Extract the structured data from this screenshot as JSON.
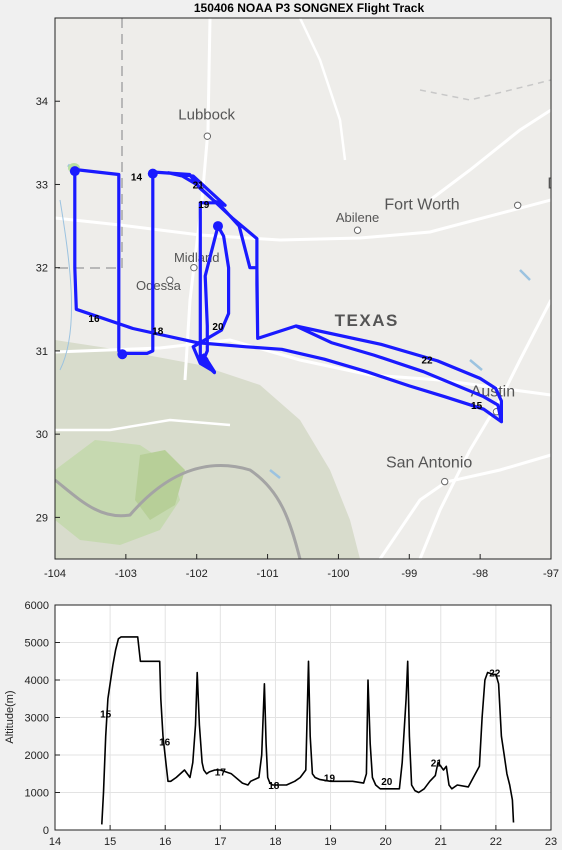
{
  "chart_data": [
    {
      "type": "line",
      "title": "150406 NOAA P3 SONGNEX Flight Track",
      "xlim": [
        -104,
        -97
      ],
      "ylim": [
        28.5,
        35
      ],
      "xticks": [
        -104,
        -103,
        -102,
        -101,
        -100,
        -99,
        -98,
        -97
      ],
      "yticks": [
        29,
        30,
        31,
        32,
        33,
        34
      ],
      "xtick_labels": [
        "-104",
        "-103",
        "-102",
        "-101",
        "-100",
        "-99",
        "-98",
        "-97"
      ],
      "ytick_labels": [
        "29",
        "30",
        "31",
        "32",
        "33",
        "34"
      ],
      "background": "map",
      "line_color": "#1a1aff",
      "map_labels": [
        {
          "text": "Lubbock",
          "lon": -101.86,
          "lat": 33.78,
          "size": 15
        },
        {
          "text": "Abilene",
          "lon": -99.73,
          "lat": 32.55,
          "size": 13
        },
        {
          "text": "Fort Worth",
          "lon": -98.82,
          "lat": 32.7,
          "size": 16
        },
        {
          "text": "D",
          "lon": -96.97,
          "lat": 32.95,
          "size": 16
        },
        {
          "text": "Midland",
          "lon": -102.0,
          "lat": 32.07,
          "size": 13
        },
        {
          "text": "Odessa",
          "lon": -102.54,
          "lat": 31.73,
          "size": 13
        },
        {
          "text": "TEXAS",
          "lon": -99.6,
          "lat": 31.3,
          "size": 17
        },
        {
          "text": "Austin",
          "lon": -97.82,
          "lat": 30.45,
          "size": 16
        },
        {
          "text": "San Antonio",
          "lon": -98.72,
          "lat": 29.6,
          "size": 16
        }
      ],
      "map_cities": [
        {
          "lon": -101.85,
          "lat": 33.58
        },
        {
          "lon": -99.73,
          "lat": 32.45
        },
        {
          "lon": -97.47,
          "lat": 32.75
        },
        {
          "lon": -102.04,
          "lat": 32.0
        },
        {
          "lon": -102.38,
          "lat": 31.85
        },
        {
          "lon": -97.77,
          "lat": 30.27
        },
        {
          "lon": -98.5,
          "lat": 29.43
        }
      ],
      "track": [
        [
          -97.7,
          30.15
        ],
        [
          -97.95,
          30.3
        ],
        [
          -98.5,
          30.45
        ],
        [
          -99.0,
          30.58
        ],
        [
          -99.6,
          30.75
        ],
        [
          -100.2,
          30.9
        ],
        [
          -100.8,
          31.02
        ],
        [
          -101.3,
          31.05
        ],
        [
          -102.0,
          31.1
        ],
        [
          -102.9,
          31.27
        ],
        [
          -103.7,
          31.5
        ],
        [
          -103.72,
          32.0
        ],
        [
          -103.72,
          32.7
        ],
        [
          -103.72,
          33.12
        ],
        [
          -103.72,
          33.18
        ],
        [
          -103.1,
          33.12
        ],
        [
          -103.1,
          32.0
        ],
        [
          -103.1,
          31.0
        ],
        [
          -103.05,
          30.97
        ],
        [
          -102.7,
          30.97
        ],
        [
          -102.62,
          31.0
        ],
        [
          -102.62,
          32.0
        ],
        [
          -102.62,
          33.12
        ],
        [
          -102.62,
          33.15
        ],
        [
          -102.1,
          33.12
        ],
        [
          -101.95,
          32.95
        ],
        [
          -101.75,
          32.8
        ],
        [
          -101.6,
          32.75
        ],
        [
          -102.05,
          33.1
        ],
        [
          -102.2,
          33.12
        ],
        [
          -102.4,
          33.14
        ],
        [
          -102.2,
          33.1
        ],
        [
          -102.0,
          33.0
        ],
        [
          -101.5,
          32.6
        ],
        [
          -101.15,
          32.35
        ],
        [
          -101.15,
          32.0
        ],
        [
          -101.14,
          31.15
        ],
        [
          -100.6,
          31.3
        ],
        [
          -99.4,
          31.08
        ],
        [
          -98.6,
          30.88
        ],
        [
          -98.0,
          30.67
        ],
        [
          -97.78,
          30.55
        ],
        [
          -97.7,
          30.4
        ],
        [
          -97.7,
          30.15
        ],
        [
          -97.7,
          30.15
        ],
        [
          -97.75,
          30.35
        ],
        [
          -97.95,
          30.45
        ],
        [
          -98.8,
          30.75
        ],
        [
          -99.5,
          30.95
        ],
        [
          -100.1,
          31.1
        ],
        [
          -100.6,
          31.3
        ],
        [
          -101.14,
          31.15
        ],
        [
          -101.15,
          31.8
        ],
        [
          -101.15,
          32.0
        ],
        [
          -101.25,
          32.0
        ],
        [
          -101.4,
          32.5
        ],
        [
          -101.7,
          32.78
        ],
        [
          -101.95,
          32.78
        ],
        [
          -101.95,
          31.5
        ],
        [
          -101.95,
          30.92
        ],
        [
          -101.9,
          30.95
        ],
        [
          -101.75,
          30.75
        ],
        [
          -101.95,
          30.85
        ],
        [
          -102.05,
          31.05
        ],
        [
          -101.65,
          31.25
        ],
        [
          -101.55,
          31.45
        ],
        [
          -101.55,
          32.0
        ],
        [
          -101.62,
          32.38
        ],
        [
          -101.7,
          32.5
        ],
        [
          -101.88,
          31.9
        ],
        [
          -101.85,
          31.3
        ],
        [
          -101.85,
          31.0
        ],
        [
          -101.9,
          30.9
        ],
        [
          -101.85,
          30.82
        ],
        [
          -101.75,
          30.74
        ]
      ],
      "markers": [
        {
          "lon": -103.72,
          "lat": 33.16
        },
        {
          "lon": -102.62,
          "lat": 33.13
        },
        {
          "lon": -103.05,
          "lat": 30.96
        },
        {
          "lon": -101.7,
          "lat": 32.5
        },
        {
          "lon": -101.9,
          "lat": 30.88
        }
      ],
      "hour_labels": [
        {
          "text": "14",
          "lon": -102.85,
          "lat": 33.05
        },
        {
          "text": "21",
          "lon": -101.98,
          "lat": 32.95
        },
        {
          "text": "19",
          "lon": -101.9,
          "lat": 32.72
        },
        {
          "text": "16",
          "lon": -103.45,
          "lat": 31.35
        },
        {
          "text": "18",
          "lon": -102.55,
          "lat": 31.2
        },
        {
          "text": "20",
          "lon": -101.7,
          "lat": 31.25
        },
        {
          "text": "22",
          "lon": -98.75,
          "lat": 30.85
        },
        {
          "text": "15",
          "lon": -98.05,
          "lat": 30.3
        }
      ]
    },
    {
      "type": "line",
      "xlabel": "",
      "ylabel": "Altitude(m)",
      "xlim": [
        14,
        23
      ],
      "ylim": [
        0,
        6000
      ],
      "xticks": [
        14,
        15,
        16,
        17,
        18,
        19,
        20,
        21,
        22,
        23
      ],
      "yticks": [
        0,
        1000,
        2000,
        3000,
        4000,
        5000,
        6000
      ],
      "xtick_labels": [
        "14",
        "15",
        "16",
        "17",
        "18",
        "19",
        "20",
        "21",
        "22",
        "23"
      ],
      "ytick_labels": [
        "0",
        "1000",
        "2000",
        "3000",
        "4000",
        "5000",
        "6000"
      ],
      "grid": true,
      "line_color": "#000000",
      "series": [
        {
          "x": [
            14.85,
            14.88,
            14.92,
            14.96,
            15.0,
            15.05,
            15.1,
            15.15,
            15.2,
            15.25,
            15.3,
            15.5,
            15.55,
            15.58,
            15.9,
            15.92,
            15.96,
            16.02,
            16.05,
            16.1,
            16.2,
            16.35,
            16.45,
            16.5,
            16.55,
            16.58,
            16.62,
            16.67,
            16.7,
            16.75,
            16.8,
            16.9,
            17.0,
            17.2,
            17.4,
            17.5,
            17.55,
            17.7,
            17.75,
            17.8,
            17.83,
            17.86,
            17.9,
            17.95,
            18.0,
            18.2,
            18.35,
            18.45,
            18.55,
            18.6,
            18.63,
            18.67,
            18.72,
            18.8,
            19.0,
            19.2,
            19.4,
            19.6,
            19.65,
            19.68,
            19.72,
            19.76,
            19.82,
            19.9,
            20.1,
            20.25,
            20.3,
            20.37,
            20.4,
            20.43,
            20.47,
            20.53,
            20.6,
            20.7,
            20.8,
            20.9,
            20.95,
            21.0,
            21.05,
            21.1,
            21.15,
            21.2,
            21.3,
            21.5,
            21.7,
            21.75,
            21.8,
            21.85,
            21.95,
            22.0,
            22.05,
            22.1,
            22.15,
            22.2,
            22.25,
            22.3,
            22.32
          ],
          "y": [
            150,
            1000,
            2500,
            3500,
            3900,
            4400,
            4800,
            5100,
            5150,
            5150,
            5150,
            5150,
            4500,
            4500,
            4500,
            3500,
            2500,
            1700,
            1300,
            1300,
            1400,
            1600,
            1400,
            1800,
            2800,
            4200,
            2800,
            1800,
            1600,
            1500,
            1550,
            1600,
            1600,
            1500,
            1250,
            1200,
            1300,
            1400,
            2000,
            3900,
            2300,
            1400,
            1250,
            1200,
            1200,
            1200,
            1300,
            1400,
            1600,
            4500,
            2500,
            1500,
            1400,
            1350,
            1300,
            1300,
            1300,
            1250,
            1500,
            4000,
            2300,
            1400,
            1200,
            1100,
            1100,
            1100,
            1800,
            3500,
            4500,
            2500,
            1200,
            1050,
            1000,
            1100,
            1300,
            1450,
            1800,
            1700,
            1600,
            1700,
            1200,
            1100,
            1200,
            1150,
            1700,
            3000,
            4000,
            4200,
            4150,
            4150,
            3900,
            2500,
            2000,
            1500,
            1200,
            800,
            200
          ]
        }
      ],
      "hour_labels": [
        {
          "text": "15",
          "x": 14.92,
          "y": 3000
        },
        {
          "text": "16",
          "x": 15.99,
          "y": 2250
        },
        {
          "text": "17",
          "x": 17.0,
          "y": 1450
        },
        {
          "text": "18",
          "x": 17.97,
          "y": 1100
        },
        {
          "text": "19",
          "x": 18.98,
          "y": 1300
        },
        {
          "text": "20",
          "x": 20.02,
          "y": 1200
        },
        {
          "text": "21",
          "x": 20.92,
          "y": 1700
        },
        {
          "text": "22",
          "x": 21.98,
          "y": 4100
        }
      ]
    }
  ]
}
